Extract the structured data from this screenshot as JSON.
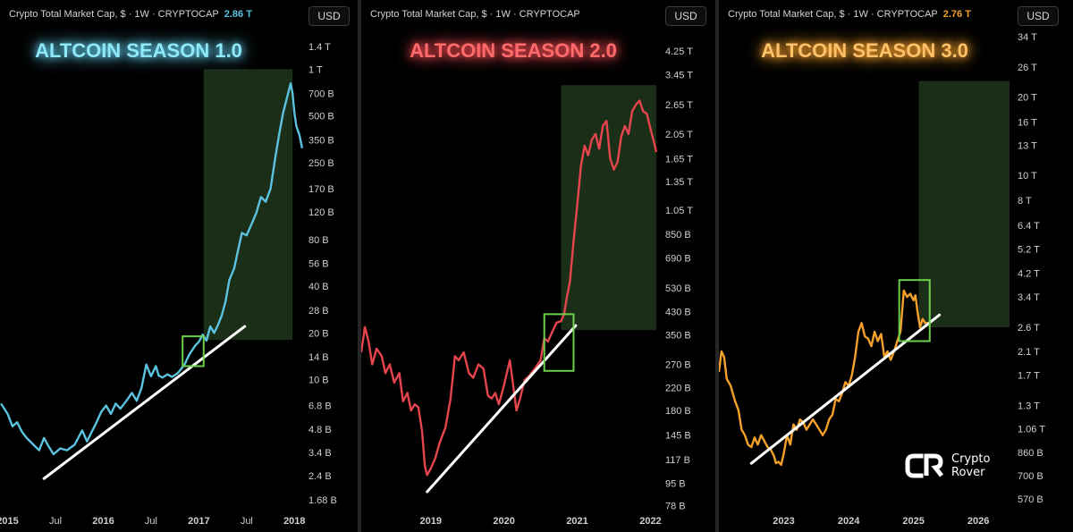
{
  "chart_data": [
    {
      "type": "line",
      "header": "Crypto Total Market Cap, $ · 1W · CRYPTOCAP",
      "last_value": "2.86 T",
      "currency": "USD",
      "title": "ALTCOIN SEASON 1.0",
      "accent": "#5bc3df",
      "title_color": "#8fe8f8",
      "scale": "log",
      "ylim": [
        1.55,
        1600
      ],
      "y_ticks": [
        {
          "label": "1.4 T",
          "v": 1400
        },
        {
          "label": "1 T",
          "v": 1000
        },
        {
          "label": "700 B",
          "v": 700
        },
        {
          "label": "500 B",
          "v": 500
        },
        {
          "label": "350 B",
          "v": 350
        },
        {
          "label": "250 B",
          "v": 250
        },
        {
          "label": "170 B",
          "v": 170
        },
        {
          "label": "120 B",
          "v": 120
        },
        {
          "label": "80 B",
          "v": 80
        },
        {
          "label": "56 B",
          "v": 56
        },
        {
          "label": "40 B",
          "v": 40
        },
        {
          "label": "28 B",
          "v": 28
        },
        {
          "label": "20 B",
          "v": 20
        },
        {
          "label": "14 B",
          "v": 14
        },
        {
          "label": "10 B",
          "v": 10
        },
        {
          "label": "6.8 B",
          "v": 6.8
        },
        {
          "label": "4.8 B",
          "v": 4.8
        },
        {
          "label": "3.4 B",
          "v": 3.4
        },
        {
          "label": "2.4 B",
          "v": 2.4
        },
        {
          "label": "1.68 B",
          "v": 1.68
        }
      ],
      "xlim": [
        2014.92,
        2018.1
      ],
      "x_ticks": [
        {
          "label": "2015",
          "v": 2015,
          "bold": true
        },
        {
          "label": "Jul",
          "v": 2015.5,
          "bold": false
        },
        {
          "label": "2016",
          "v": 2016,
          "bold": true
        },
        {
          "label": "Jul",
          "v": 2016.5,
          "bold": false
        },
        {
          "label": "2017",
          "v": 2017,
          "bold": true
        },
        {
          "label": "Jul",
          "v": 2017.5,
          "bold": false
        },
        {
          "label": "2018",
          "v": 2018,
          "bold": true
        }
      ],
      "series": [
        {
          "x": [
            2014.93,
            2015.0,
            2015.05,
            2015.1,
            2015.15,
            2015.2,
            2015.27,
            2015.33,
            2015.38,
            2015.43,
            2015.48,
            2015.55,
            2015.62,
            2015.7,
            2015.78,
            2015.83,
            2015.88,
            2015.93,
            2015.98,
            2016.03,
            2016.08,
            2016.13,
            2016.18,
            2016.25,
            2016.3,
            2016.35,
            2016.4,
            2016.45,
            2016.5,
            2016.55,
            2016.58,
            2016.62,
            2016.67,
            2016.72,
            2016.78,
            2016.85,
            2016.9,
            2016.96,
            2017.0,
            2017.04,
            2017.08,
            2017.12,
            2017.16,
            2017.2,
            2017.24,
            2017.28,
            2017.32,
            2017.37,
            2017.41,
            2017.45,
            2017.5,
            2017.55,
            2017.6,
            2017.65,
            2017.7,
            2017.75,
            2017.8,
            2017.84,
            2017.88,
            2017.92,
            2017.96,
            2017.98,
            2018.0,
            2018.02,
            2018.05,
            2018.08
          ],
          "y": [
            7.0,
            6.0,
            5.0,
            5.3,
            4.6,
            4.2,
            3.8,
            3.5,
            4.2,
            3.7,
            3.3,
            3.6,
            3.5,
            3.8,
            4.7,
            4.0,
            4.6,
            5.3,
            6.2,
            6.8,
            6.0,
            7.0,
            6.5,
            7.4,
            8.2,
            7.3,
            8.8,
            12.5,
            10.5,
            12.2,
            10.6,
            10.3,
            10.8,
            10.4,
            11.0,
            12.5,
            14.5,
            16.5,
            17.5,
            19.5,
            17.8,
            22.0,
            20.0,
            22.5,
            26.0,
            32.0,
            44.0,
            52.0,
            68.0,
            88.0,
            85.0,
            100.0,
            118.0,
            150.0,
            140.0,
            170.0,
            270.0,
            380.0,
            520.0,
            650.0,
            810.0,
            700.0,
            520.0,
            430.0,
            380.0,
            310.0
          ]
        }
      ],
      "trendline": [
        [
          2015.38,
          2.3
        ],
        [
          2017.48,
          22.0
        ]
      ],
      "highlight_zone": {
        "x": [
          2017.05,
          2017.98
        ],
        "y": [
          18.0,
          1000
        ]
      },
      "box": {
        "x": [
          2016.83,
          2017.05
        ],
        "y": [
          12.2,
          19.0
        ]
      }
    },
    {
      "type": "line",
      "header": "Crypto Total Market Cap, $ · 1W · CRYPTOCAP",
      "currency": "USD",
      "title": "ALTCOIN SEASON 2.0",
      "accent": "#e6454d",
      "title_color": "#ff6b6b",
      "scale": "log",
      "ylim": [
        77,
        5100
      ],
      "y_ticks": [
        {
          "label": "4.25 T",
          "v": 4250
        },
        {
          "label": "3.45 T",
          "v": 3450
        },
        {
          "label": "2.65 T",
          "v": 2650
        },
        {
          "label": "2.05 T",
          "v": 2050
        },
        {
          "label": "1.65 T",
          "v": 1650
        },
        {
          "label": "1.35 T",
          "v": 1350
        },
        {
          "label": "1.05 T",
          "v": 1050
        },
        {
          "label": "850 B",
          "v": 850
        },
        {
          "label": "690 B",
          "v": 690
        },
        {
          "label": "530 B",
          "v": 530
        },
        {
          "label": "430 B",
          "v": 430
        },
        {
          "label": "350 B",
          "v": 350
        },
        {
          "label": "270 B",
          "v": 270
        },
        {
          "label": "220 B",
          "v": 220
        },
        {
          "label": "180 B",
          "v": 180
        },
        {
          "label": "145 B",
          "v": 145
        },
        {
          "label": "117 B",
          "v": 117
        },
        {
          "label": "95 B",
          "v": 95
        },
        {
          "label": "78 B",
          "v": 78
        }
      ],
      "xlim": [
        2018.05,
        2022.08
      ],
      "x_ticks": [
        {
          "label": "2019",
          "v": 2019,
          "bold": true
        },
        {
          "label": "2020",
          "v": 2020,
          "bold": true
        },
        {
          "label": "2021",
          "v": 2021,
          "bold": true
        },
        {
          "label": "2022",
          "v": 2022,
          "bold": true
        }
      ],
      "series": [
        {
          "x": [
            2018.05,
            2018.1,
            2018.15,
            2018.2,
            2018.26,
            2018.33,
            2018.38,
            2018.44,
            2018.5,
            2018.57,
            2018.62,
            2018.68,
            2018.73,
            2018.78,
            2018.83,
            2018.88,
            2018.92,
            2018.95,
            2019.0,
            2019.06,
            2019.12,
            2019.2,
            2019.27,
            2019.33,
            2019.38,
            2019.45,
            2019.52,
            2019.58,
            2019.65,
            2019.72,
            2019.78,
            2019.83,
            2019.88,
            2019.93,
            2020.0,
            2020.08,
            2020.12,
            2020.17,
            2020.22,
            2020.28,
            2020.35,
            2020.42,
            2020.5,
            2020.55,
            2020.6,
            2020.67,
            2020.72,
            2020.78,
            2020.82,
            2020.86,
            2020.9,
            2020.95,
            2021.0,
            2021.05,
            2021.1,
            2021.15,
            2021.2,
            2021.25,
            2021.3,
            2021.35,
            2021.4,
            2021.45,
            2021.5,
            2021.55,
            2021.6,
            2021.65,
            2021.7,
            2021.75,
            2021.8,
            2021.85,
            2021.9,
            2021.95,
            2022.0,
            2022.05,
            2022.08
          ],
          "y": [
            300,
            375,
            330,
            270,
            310,
            290,
            250,
            270,
            230,
            250,
            195,
            210,
            180,
            190,
            185,
            150,
            110,
            102,
            108,
            118,
            135,
            155,
            200,
            290,
            280,
            300,
            250,
            240,
            270,
            260,
            205,
            200,
            210,
            190,
            225,
            280,
            230,
            180,
            200,
            235,
            245,
            260,
            280,
            340,
            330,
            365,
            390,
            395,
            420,
            490,
            560,
            800,
            1100,
            1550,
            1850,
            1700,
            1950,
            2050,
            1800,
            2200,
            2300,
            1650,
            1500,
            1600,
            2000,
            2200,
            2050,
            2500,
            2650,
            2750,
            2500,
            2450,
            2150,
            1900,
            1750
          ]
        }
      ],
      "trendline": [
        [
          2018.95,
          88
        ],
        [
          2020.98,
          380
        ]
      ],
      "highlight_zone": {
        "x": [
          2020.78,
          2022.08
        ],
        "y": [
          365,
          3150
        ]
      },
      "box": {
        "x": [
          2020.55,
          2020.95
        ],
        "y": [
          255,
          420
        ]
      }
    },
    {
      "type": "line",
      "header": "Crypto Total Market Cap, $ · 1W · CRYPTOCAP",
      "last_value": "2.76 T",
      "currency": "USD",
      "title": "ALTCOIN SEASON 3.0",
      "accent": "#f5a02a",
      "title_color": "#ffc06a",
      "scale": "log",
      "ylim": [
        560,
        36000
      ],
      "y_ticks": [
        {
          "label": "34 T",
          "v": 34000
        },
        {
          "label": "26 T",
          "v": 26000
        },
        {
          "label": "20 T",
          "v": 20000
        },
        {
          "label": "16 T",
          "v": 16000
        },
        {
          "label": "13 T",
          "v": 13000
        },
        {
          "label": "10 T",
          "v": 10000
        },
        {
          "label": "8 T",
          "v": 8000
        },
        {
          "label": "6.4 T",
          "v": 6400
        },
        {
          "label": "5.2 T",
          "v": 5200
        },
        {
          "label": "4.2 T",
          "v": 4200
        },
        {
          "label": "3.4 T",
          "v": 3400
        },
        {
          "label": "2.6 T",
          "v": 2600
        },
        {
          "label": "2.1 T",
          "v": 2100
        },
        {
          "label": "1.7 T",
          "v": 1700
        },
        {
          "label": "1.3 T",
          "v": 1300
        },
        {
          "label": "1.06 T",
          "v": 1060
        },
        {
          "label": "860 B",
          "v": 860
        },
        {
          "label": "700 B",
          "v": 700
        },
        {
          "label": "570 B",
          "v": 570
        }
      ],
      "xlim": [
        2022.0,
        2026.48
      ],
      "x_ticks": [
        {
          "label": "2023",
          "v": 2023,
          "bold": true
        },
        {
          "label": "2024",
          "v": 2024,
          "bold": true
        },
        {
          "label": "2025",
          "v": 2025,
          "bold": true
        },
        {
          "label": "2026",
          "v": 2026,
          "bold": true
        }
      ],
      "series": [
        {
          "x": [
            2022.0,
            2022.04,
            2022.08,
            2022.12,
            2022.18,
            2022.25,
            2022.3,
            2022.35,
            2022.4,
            2022.45,
            2022.5,
            2022.55,
            2022.6,
            2022.65,
            2022.7,
            2022.75,
            2022.8,
            2022.85,
            2022.88,
            2022.92,
            2022.96,
            2023.0,
            2023.05,
            2023.1,
            2023.15,
            2023.2,
            2023.25,
            2023.3,
            2023.35,
            2023.4,
            2023.45,
            2023.5,
            2023.55,
            2023.6,
            2023.65,
            2023.7,
            2023.75,
            2023.8,
            2023.85,
            2023.9,
            2023.95,
            2024.0,
            2024.05,
            2024.1,
            2024.15,
            2024.2,
            2024.25,
            2024.3,
            2024.35,
            2024.4,
            2024.45,
            2024.5,
            2024.55,
            2024.6,
            2024.65,
            2024.7,
            2024.75,
            2024.8,
            2024.85,
            2024.9,
            2024.95,
            2025.0,
            2025.03,
            2025.06,
            2025.1,
            2025.14,
            2025.18,
            2025.22
          ],
          "y": [
            1750,
            2100,
            2000,
            1650,
            1550,
            1350,
            1250,
            1050,
            1000,
            920,
            900,
            980,
            920,
            1000,
            950,
            900,
            880,
            830,
            780,
            790,
            770,
            850,
            1000,
            920,
            1100,
            1050,
            1150,
            1120,
            1050,
            1100,
            1150,
            1100,
            1050,
            1000,
            1050,
            1150,
            1200,
            1380,
            1350,
            1450,
            1600,
            1550,
            1700,
            2000,
            2500,
            2700,
            2400,
            2350,
            2200,
            2500,
            2300,
            2450,
            2000,
            2100,
            1950,
            2100,
            2300,
            2500,
            3600,
            3400,
            3500,
            3300,
            3450,
            3000,
            2600,
            2800,
            2700,
            2700
          ]
        }
      ],
      "trendline": [
        [
          2022.5,
          780
        ],
        [
          2025.4,
          2900
        ]
      ],
      "highlight_zone": {
        "x": [
          2025.08,
          2026.48
        ],
        "y": [
          2600,
          23000
        ]
      },
      "box": {
        "x": [
          2024.78,
          2025.25
        ],
        "y": [
          2300,
          3950
        ]
      }
    }
  ],
  "logo": {
    "line1": "Crypto",
    "line2": "Rover"
  }
}
